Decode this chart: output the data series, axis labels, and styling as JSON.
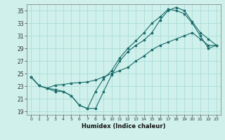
{
  "xlabel": "Humidex (Indice chaleur)",
  "bg_color": "#cff0eb",
  "grid_color": "#aaddda",
  "line_color": "#1a6b6b",
  "xlim": [
    -0.5,
    23.5
  ],
  "ylim": [
    18.5,
    36.0
  ],
  "xticks": [
    0,
    1,
    2,
    3,
    4,
    5,
    6,
    7,
    8,
    9,
    10,
    11,
    12,
    13,
    14,
    15,
    16,
    17,
    18,
    19,
    20,
    21,
    22,
    23
  ],
  "yticks": [
    19,
    21,
    23,
    25,
    27,
    29,
    31,
    33,
    35
  ],
  "line1_x": [
    0,
    1,
    2,
    3,
    4,
    5,
    6,
    7,
    8,
    9,
    10,
    11,
    12,
    13,
    14,
    15,
    16,
    17,
    18,
    19,
    20,
    21,
    22,
    23
  ],
  "line1_y": [
    24.5,
    23.1,
    22.7,
    22.2,
    22.2,
    21.5,
    20.0,
    19.5,
    19.5,
    22.2,
    24.8,
    27.0,
    28.5,
    29.5,
    30.3,
    31.5,
    33.5,
    35.0,
    35.5,
    35.0,
    33.2,
    31.5,
    30.5,
    29.5
  ],
  "line2_x": [
    0,
    1,
    2,
    3,
    4,
    5,
    6,
    7,
    8,
    9,
    10,
    11,
    12,
    13,
    14,
    15,
    16,
    17,
    18,
    19,
    20,
    21,
    22,
    23
  ],
  "line2_y": [
    24.5,
    23.1,
    22.7,
    22.5,
    22.2,
    21.5,
    20.0,
    19.5,
    22.2,
    24.2,
    25.5,
    27.5,
    29.0,
    30.2,
    31.5,
    33.0,
    34.0,
    35.2,
    35.0,
    34.5,
    33.0,
    31.0,
    29.0,
    29.5
  ],
  "line3_x": [
    0,
    1,
    2,
    3,
    4,
    5,
    6,
    7,
    8,
    9,
    10,
    11,
    12,
    13,
    14,
    15,
    16,
    17,
    18,
    19,
    20,
    21,
    22,
    23
  ],
  "line3_y": [
    24.5,
    23.1,
    22.7,
    23.2,
    23.3,
    23.5,
    23.6,
    23.7,
    24.0,
    24.5,
    25.0,
    25.5,
    26.0,
    27.0,
    27.8,
    28.8,
    29.5,
    30.0,
    30.5,
    31.0,
    31.5,
    30.5,
    29.5,
    29.5
  ]
}
